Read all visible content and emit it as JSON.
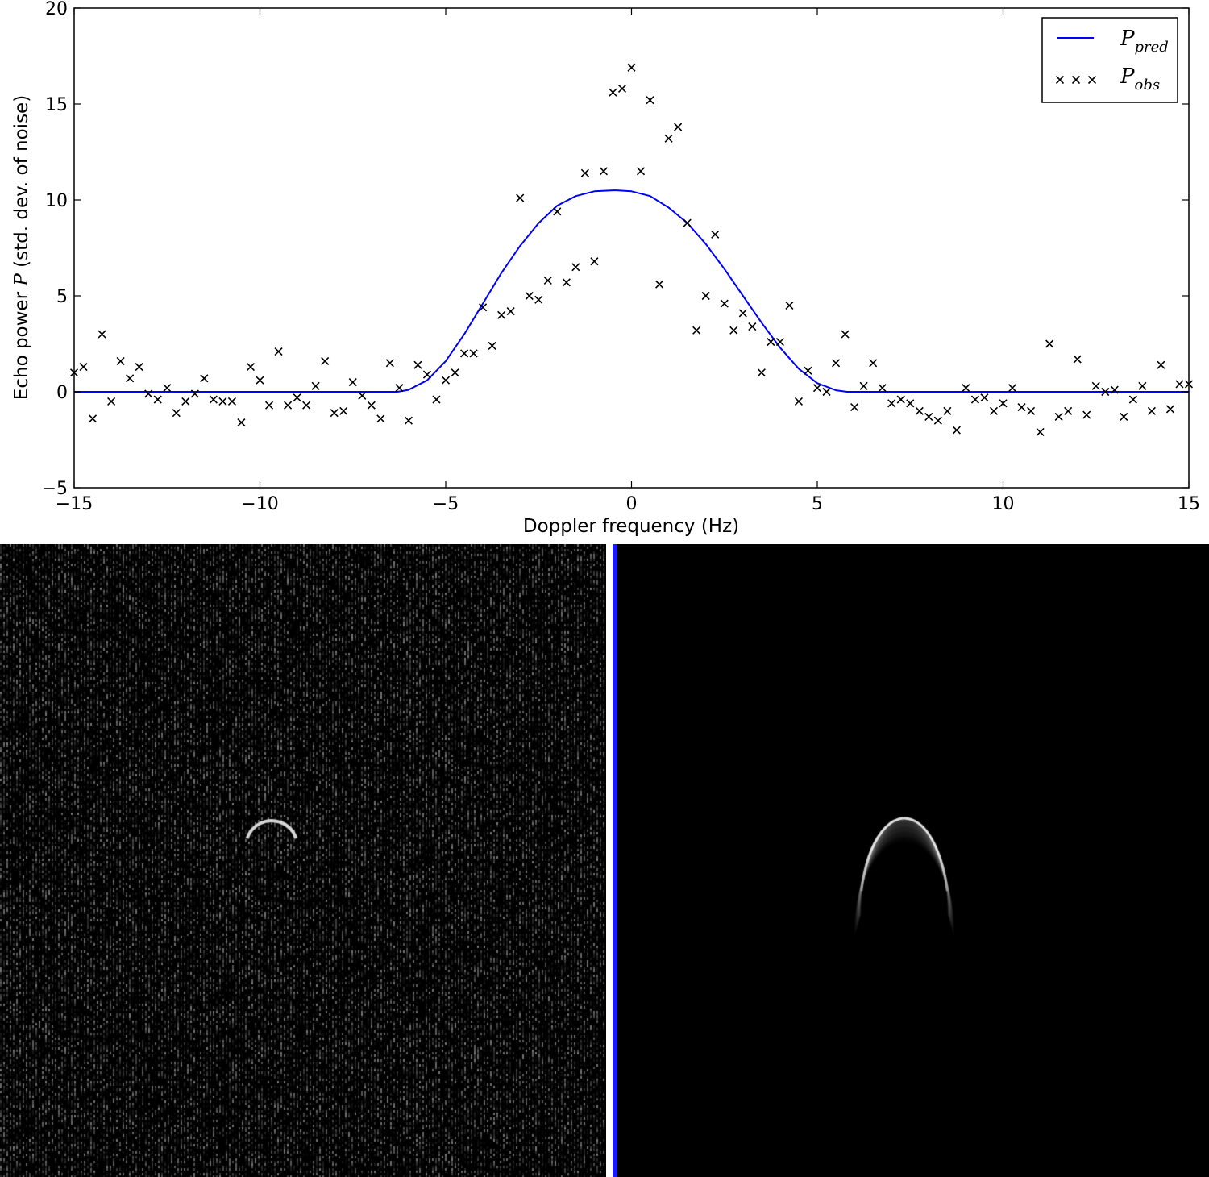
{
  "chart_data": {
    "type": "scatter",
    "xlabel": "Doppler frequency (Hz)",
    "ylabel_prefix": "Echo power",
    "ylabel_var": "P",
    "ylabel_suffix": "(std. dev. of noise)",
    "xlim": [
      -15,
      15
    ],
    "ylim": [
      -5,
      20
    ],
    "xticks": [
      -15,
      -10,
      -5,
      0,
      5,
      10,
      15
    ],
    "yticks": [
      -5,
      0,
      5,
      10,
      15,
      20
    ],
    "xtick_labels": [
      "−15",
      "−10",
      "−5",
      "0",
      "5",
      "10",
      "15"
    ],
    "ytick_labels": [
      "−5",
      "0",
      "5",
      "10",
      "15",
      "20"
    ],
    "grid": false,
    "legend_position": "top-right",
    "series": [
      {
        "name": "P",
        "subscript": "pred",
        "kind": "line",
        "color": "#0000ff",
        "x": [
          -15,
          -6.3,
          -6.0,
          -5.5,
          -5.0,
          -4.5,
          -4.0,
          -3.5,
          -3.0,
          -2.5,
          -2.0,
          -1.5,
          -1.0,
          -0.5,
          -0.4,
          0.0,
          0.5,
          1.0,
          1.5,
          2.0,
          2.5,
          3.0,
          3.5,
          4.0,
          4.5,
          5.0,
          5.5,
          5.8,
          15
        ],
        "y": [
          0,
          0,
          0.1,
          0.6,
          1.6,
          3.0,
          4.6,
          6.2,
          7.6,
          8.8,
          9.7,
          10.2,
          10.45,
          10.5,
          10.5,
          10.45,
          10.2,
          9.6,
          8.8,
          7.7,
          6.4,
          5.0,
          3.6,
          2.3,
          1.2,
          0.45,
          0.08,
          0,
          0
        ]
      },
      {
        "name": "P",
        "subscript": "obs",
        "kind": "scatter",
        "marker": "x",
        "color": "#000000",
        "x": [
          -15.0,
          -14.75,
          -14.5,
          -14.25,
          -14.0,
          -13.75,
          -13.5,
          -13.25,
          -13.0,
          -12.75,
          -12.5,
          -12.25,
          -12.0,
          -11.75,
          -11.5,
          -11.25,
          -11.0,
          -10.75,
          -10.5,
          -10.25,
          -10.0,
          -9.75,
          -9.5,
          -9.25,
          -9.0,
          -8.75,
          -8.5,
          -8.25,
          -8.0,
          -7.75,
          -7.5,
          -7.25,
          -7.0,
          -6.75,
          -6.5,
          -6.25,
          -6.0,
          -5.75,
          -5.5,
          -5.25,
          -5.0,
          -4.75,
          -4.5,
          -4.25,
          -4.0,
          -3.75,
          -3.5,
          -3.25,
          -3.0,
          -2.75,
          -2.5,
          -2.25,
          -2.0,
          -1.75,
          -1.5,
          -1.25,
          -1.0,
          -0.75,
          -0.5,
          -0.25,
          0.0,
          0.25,
          0.5,
          0.75,
          1.0,
          1.25,
          1.5,
          1.75,
          2.0,
          2.25,
          2.5,
          2.75,
          3.0,
          3.25,
          3.5,
          3.75,
          4.0,
          4.25,
          4.5,
          4.75,
          5.0,
          5.25,
          5.5,
          5.75,
          6.0,
          6.25,
          6.5,
          6.75,
          7.0,
          7.25,
          7.5,
          7.75,
          8.0,
          8.25,
          8.5,
          8.75,
          9.0,
          9.25,
          9.5,
          9.75,
          10.0,
          10.25,
          10.5,
          10.75,
          11.0,
          11.25,
          11.5,
          11.75,
          12.0,
          12.25,
          12.5,
          12.75,
          13.0,
          13.25,
          13.5,
          13.75,
          14.0,
          14.25,
          14.5,
          14.75,
          15.0
        ],
        "y": [
          1.0,
          1.3,
          -1.4,
          3.0,
          -0.5,
          1.6,
          0.7,
          1.3,
          -0.1,
          -0.4,
          0.2,
          -1.1,
          -0.5,
          -0.1,
          0.7,
          -0.4,
          -0.5,
          -0.5,
          -1.6,
          1.3,
          0.6,
          -0.7,
          2.1,
          -0.7,
          -0.3,
          -0.7,
          0.3,
          1.6,
          -1.1,
          -1.0,
          0.5,
          -0.2,
          -0.7,
          -1.4,
          1.5,
          0.2,
          -1.5,
          1.4,
          0.9,
          -0.4,
          0.6,
          1.0,
          2.0,
          2.0,
          4.4,
          2.4,
          4.0,
          4.2,
          10.1,
          5.0,
          4.8,
          5.8,
          9.4,
          5.7,
          6.5,
          11.4,
          6.8,
          11.5,
          15.6,
          15.8,
          16.9,
          11.5,
          15.2,
          5.6,
          13.2,
          13.8,
          8.8,
          3.2,
          5.0,
          8.2,
          4.6,
          3.2,
          4.1,
          3.4,
          1.0,
          2.6,
          2.6,
          4.5,
          -0.5,
          1.1,
          0.2,
          0.0,
          1.5,
          3.0,
          -0.8,
          0.3,
          1.5,
          0.2,
          -0.6,
          -0.4,
          -0.6,
          -1.0,
          -1.3,
          -1.5,
          -1.0,
          -2.0,
          0.2,
          -0.4,
          -0.3,
          -1.0,
          -0.6,
          0.2,
          -0.8,
          -1.0,
          -2.1,
          2.5,
          -1.3,
          -1.0,
          1.7,
          -1.2,
          0.3,
          0.0,
          0.1,
          -1.3,
          -0.4,
          0.3,
          -1.0,
          1.4,
          -0.9,
          0.4,
          0.4
        ]
      }
    ]
  },
  "panels": {
    "observed": {
      "background": "#000000",
      "feature_color": "#ffffff"
    },
    "predicted": {
      "background": "#000000",
      "feature_color": "#ffffff"
    },
    "divider_color": "#1a1aff"
  }
}
